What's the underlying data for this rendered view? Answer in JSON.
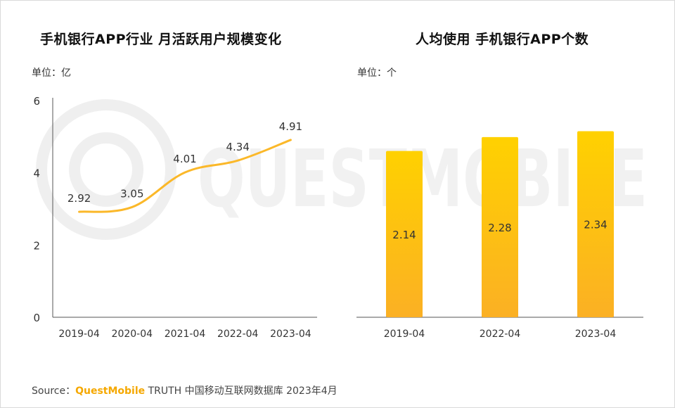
{
  "chart_data": [
    {
      "type": "line",
      "title": "手机银行APP行业 月活跃用户规模变化",
      "unit_label": "单位：亿",
      "categories": [
        "2019-04",
        "2020-04",
        "2021-04",
        "2022-04",
        "2023-04"
      ],
      "series": [
        {
          "values": [
            2.92,
            3.05,
            4.01,
            4.34,
            4.91
          ],
          "color": "#fbb829"
        }
      ],
      "data_labels": [
        "2.92",
        "3.05",
        "4.01",
        "4.34",
        "4.91"
      ],
      "ylim": [
        0,
        6
      ],
      "yticks": [
        "0",
        "2",
        "4",
        "6"
      ],
      "grid": false
    },
    {
      "type": "bar",
      "title": "人均使用 手机银行APP个数",
      "unit_label": "单位：个",
      "categories": [
        "2019-04",
        "2022-04",
        "2023-04"
      ],
      "series": [
        {
          "values": [
            2.14,
            2.28,
            2.34
          ],
          "color": "#fbb829"
        }
      ],
      "data_labels": [
        "2.14",
        "2.28",
        "2.34"
      ],
      "grid": false
    }
  ],
  "footer": {
    "source_prefix": "Source：",
    "source_brand": "QuestMobile",
    "source_rest": " TRUTH 中国移动互联网数据库 2023年4月"
  },
  "watermark": {
    "text": "QUESTMOBILE"
  }
}
